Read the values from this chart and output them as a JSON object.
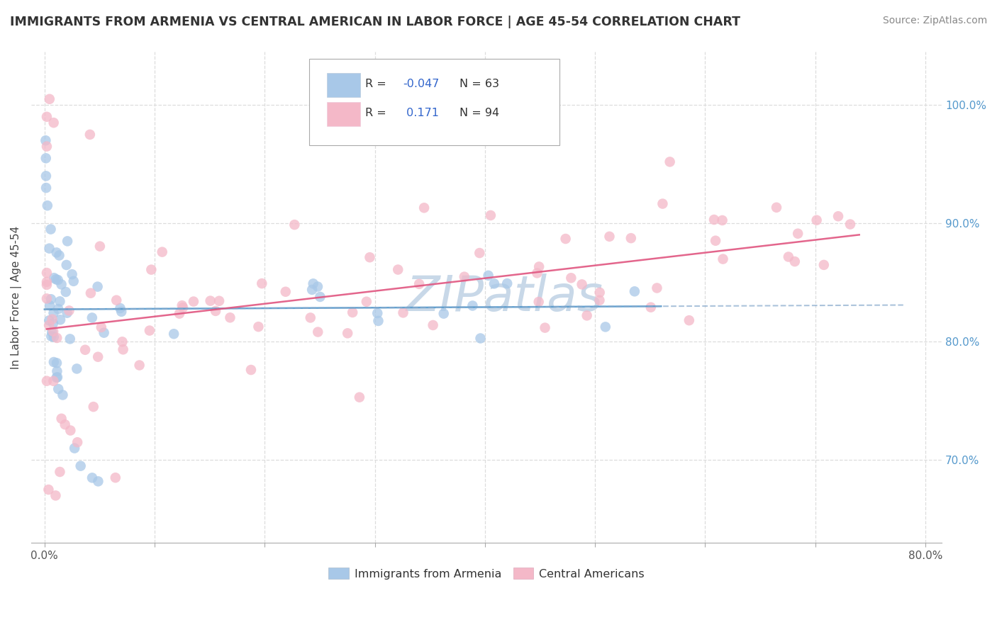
{
  "title": "IMMIGRANTS FROM ARMENIA VS CENTRAL AMERICAN IN LABOR FORCE | AGE 45-54 CORRELATION CHART",
  "source": "Source: ZipAtlas.com",
  "ylabel": "In Labor Force | Age 45-54",
  "x_min": 0.0,
  "x_max": 0.8,
  "y_min": 0.63,
  "y_max": 1.045,
  "y_ticks": [
    0.7,
    0.8,
    0.9,
    1.0
  ],
  "y_tick_labels": [
    "70.0%",
    "80.0%",
    "90.0%",
    "100.0%"
  ],
  "x_ticks": [
    0.0,
    0.1,
    0.2,
    0.3,
    0.4,
    0.5,
    0.6,
    0.7,
    0.8
  ],
  "color_armenia": "#a8c8e8",
  "color_central": "#f4b8c8",
  "color_armenia_solid": "#5599cc",
  "color_central_solid": "#e05580",
  "color_armenia_dashed": "#88aacc",
  "watermark": "ZIPat las",
  "watermark_color": "#c8d8e8",
  "legend_text_r": "#4477bb",
  "legend_text_n": "#333333",
  "grid_color": "#dddddd",
  "r_armenia": -0.047,
  "n_armenia": 63,
  "r_central": 0.171,
  "n_central": 94
}
